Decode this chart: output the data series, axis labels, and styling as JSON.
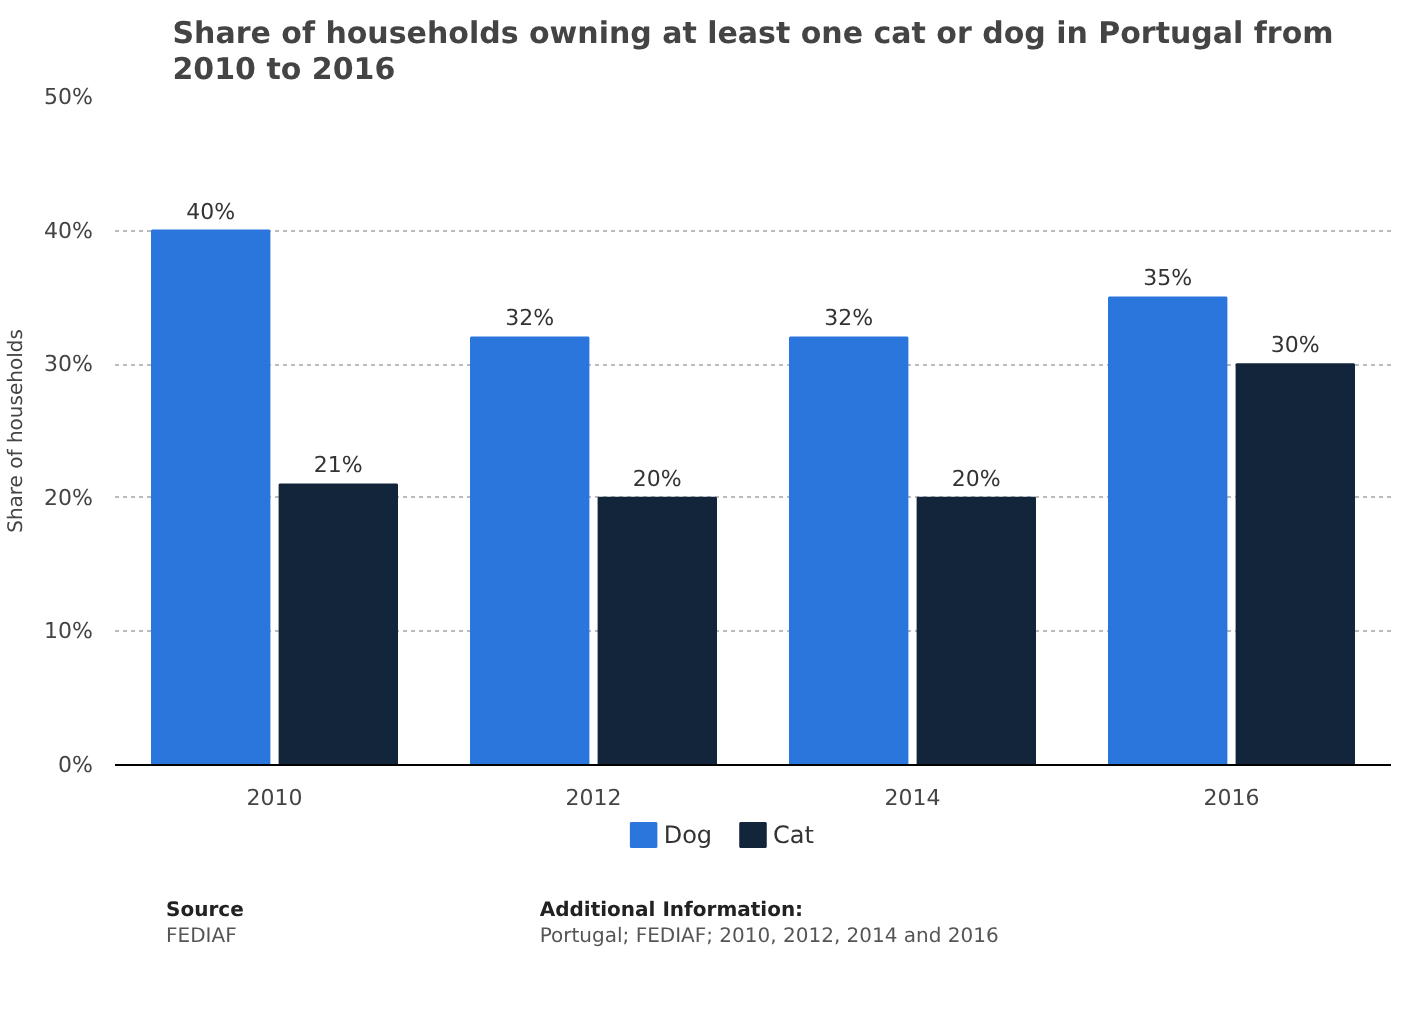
{
  "chart_data": {
    "type": "bar",
    "title": "Share of households owning at least one cat or dog in Portugal from 2010 to 2016",
    "ylabel": "Share of households",
    "categories": [
      "2010",
      "2012",
      "2014",
      "2016"
    ],
    "series": [
      {
        "name": "Dog",
        "color": "#2a76dd",
        "values": [
          40,
          32,
          32,
          35
        ]
      },
      {
        "name": "Cat",
        "color": "#12253a",
        "values": [
          21,
          20,
          20,
          30
        ]
      }
    ],
    "ylim": [
      0,
      50
    ],
    "yticks": [
      {
        "value": 0,
        "label": "0%"
      },
      {
        "value": 10,
        "label": "10%"
      },
      {
        "value": 20,
        "label": "20%"
      },
      {
        "value": 30,
        "label": "30%"
      },
      {
        "value": 40,
        "label": "40%"
      },
      {
        "value": 50,
        "label": "50%"
      }
    ],
    "value_labels": [
      [
        "40%",
        "32%",
        "32%",
        "35%"
      ],
      [
        "21%",
        "20%",
        "20%",
        "30%"
      ]
    ],
    "grid": "y",
    "legend": "bottom",
    "annotations": [
      "Source",
      "FEDIAF",
      "Additional Information:",
      "Portugal; FEDIAF; 2010, 2012, 2014 and 2016"
    ]
  }
}
